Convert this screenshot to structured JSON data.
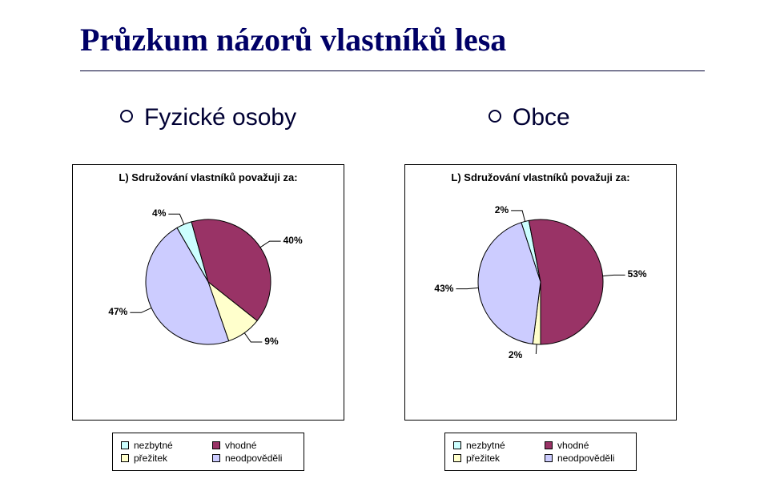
{
  "title": "Průzkum názorů vlastníků lesa",
  "subheads": {
    "left": "Fyzické osoby",
    "right": "Obce"
  },
  "legend_labels": {
    "nezbytne": "nezbytné",
    "vhodne": "vhodné",
    "prezitek": "přežitek",
    "neodpovedeli": "neodpověděli"
  },
  "colors": {
    "nezbytne": "#ccffff",
    "vhodne": "#993366",
    "prezitek": "#ffffcc",
    "neodpovedeli": "#ccccff",
    "background": "#ffffff",
    "border": "#000000",
    "text": "#000000",
    "title_text": "#000066",
    "leader": "#000000"
  },
  "chart_left": {
    "type": "pie",
    "title": "L) Sdružování vlastníků považuji za:",
    "slices": [
      {
        "key": "nezbytne",
        "value": 4,
        "label": "4%"
      },
      {
        "key": "vhodne",
        "value": 40,
        "label": "40%"
      },
      {
        "key": "prezitek",
        "value": 9,
        "label": "9%"
      },
      {
        "key": "neodpovedeli",
        "value": 47,
        "label": "47%"
      }
    ],
    "start_angle_deg": 240,
    "radius": 78,
    "label_fontsize": 12,
    "title_fontsize": 13
  },
  "chart_right": {
    "type": "pie",
    "title": "L) Sdružování vlastníků považuji za:",
    "slices": [
      {
        "key": "nezbytne",
        "value": 2,
        "label": "2%"
      },
      {
        "key": "vhodne",
        "value": 53,
        "label": "53%"
      },
      {
        "key": "prezitek",
        "value": 2,
        "label": "2%"
      },
      {
        "key": "neodpovedeli",
        "value": 43,
        "label": "43%"
      }
    ],
    "start_angle_deg": 252,
    "radius": 78,
    "label_fontsize": 12,
    "title_fontsize": 13
  }
}
